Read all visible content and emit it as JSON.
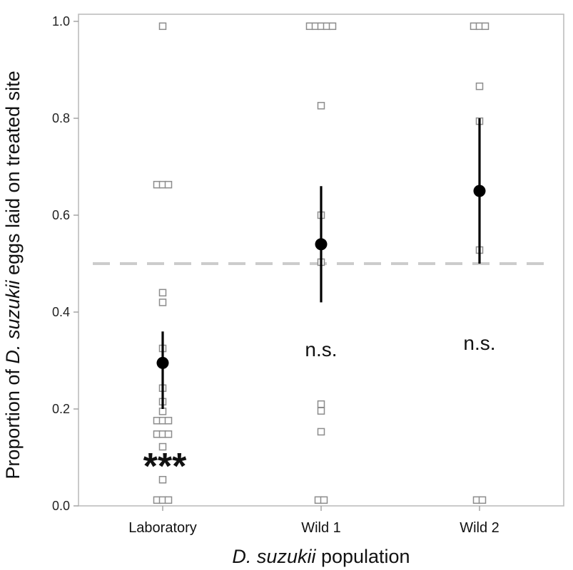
{
  "chart_data": {
    "type": "scatter",
    "title": "",
    "ylabel_parts": [
      "Proportion of ",
      "D. suzukii",
      " eggs laid on treated site"
    ],
    "xlabel_parts": [
      "D. suzukii",
      " population"
    ],
    "ylim": [
      0.0,
      1.0
    ],
    "yticks": [
      0.0,
      0.2,
      0.4,
      0.6,
      0.8,
      1.0
    ],
    "ytick_labels": [
      "0.0",
      "0.2",
      "0.4",
      "0.6",
      "0.8",
      "1.0"
    ],
    "categories": [
      "Laboratory",
      "Wild 1",
      "Wild 2"
    ],
    "reference_line": 0.5,
    "groups": [
      {
        "name": "Laboratory",
        "mean": 0.295,
        "ci": [
          0.2,
          0.36
        ],
        "annotation": "***",
        "points": [
          {
            "y": 0.99,
            "offset": 0
          },
          {
            "y": 0.663,
            "offset": -1
          },
          {
            "y": 0.663,
            "offset": 0
          },
          {
            "y": 0.663,
            "offset": 1
          },
          {
            "y": 0.44,
            "offset": 0
          },
          {
            "y": 0.42,
            "offset": 0
          },
          {
            "y": 0.325,
            "offset": 0
          },
          {
            "y": 0.243,
            "offset": 0
          },
          {
            "y": 0.215,
            "offset": 0
          },
          {
            "y": 0.195,
            "offset": 0
          },
          {
            "y": 0.176,
            "offset": -1
          },
          {
            "y": 0.176,
            "offset": 0
          },
          {
            "y": 0.176,
            "offset": 1
          },
          {
            "y": 0.148,
            "offset": -1
          },
          {
            "y": 0.148,
            "offset": 0
          },
          {
            "y": 0.148,
            "offset": 1
          },
          {
            "y": 0.122,
            "offset": 0
          },
          {
            "y": 0.054,
            "offset": 0
          },
          {
            "y": 0.012,
            "offset": -1
          },
          {
            "y": 0.012,
            "offset": 0
          },
          {
            "y": 0.012,
            "offset": 1
          }
        ]
      },
      {
        "name": "Wild 1",
        "mean": 0.54,
        "ci": [
          0.42,
          0.66
        ],
        "annotation": "n.s.",
        "points": [
          {
            "y": 0.99,
            "offset": -2
          },
          {
            "y": 0.99,
            "offset": -1
          },
          {
            "y": 0.99,
            "offset": 0
          },
          {
            "y": 0.99,
            "offset": 1
          },
          {
            "y": 0.99,
            "offset": 2
          },
          {
            "y": 0.826,
            "offset": 0
          },
          {
            "y": 0.6,
            "offset": 0
          },
          {
            "y": 0.503,
            "offset": 0
          },
          {
            "y": 0.21,
            "offset": 0
          },
          {
            "y": 0.196,
            "offset": 0
          },
          {
            "y": 0.153,
            "offset": 0
          },
          {
            "y": 0.012,
            "offset": -0.5
          },
          {
            "y": 0.012,
            "offset": 0.5
          }
        ]
      },
      {
        "name": "Wild 2",
        "mean": 0.65,
        "ci": [
          0.5,
          0.8
        ],
        "annotation": "n.s.",
        "points": [
          {
            "y": 0.99,
            "offset": -1
          },
          {
            "y": 0.99,
            "offset": 0
          },
          {
            "y": 0.99,
            "offset": 1
          },
          {
            "y": 0.866,
            "offset": 0
          },
          {
            "y": 0.794,
            "offset": 0
          },
          {
            "y": 0.528,
            "offset": 0
          },
          {
            "y": 0.012,
            "offset": -0.5
          },
          {
            "y": 0.012,
            "offset": 0.5
          }
        ]
      }
    ]
  }
}
